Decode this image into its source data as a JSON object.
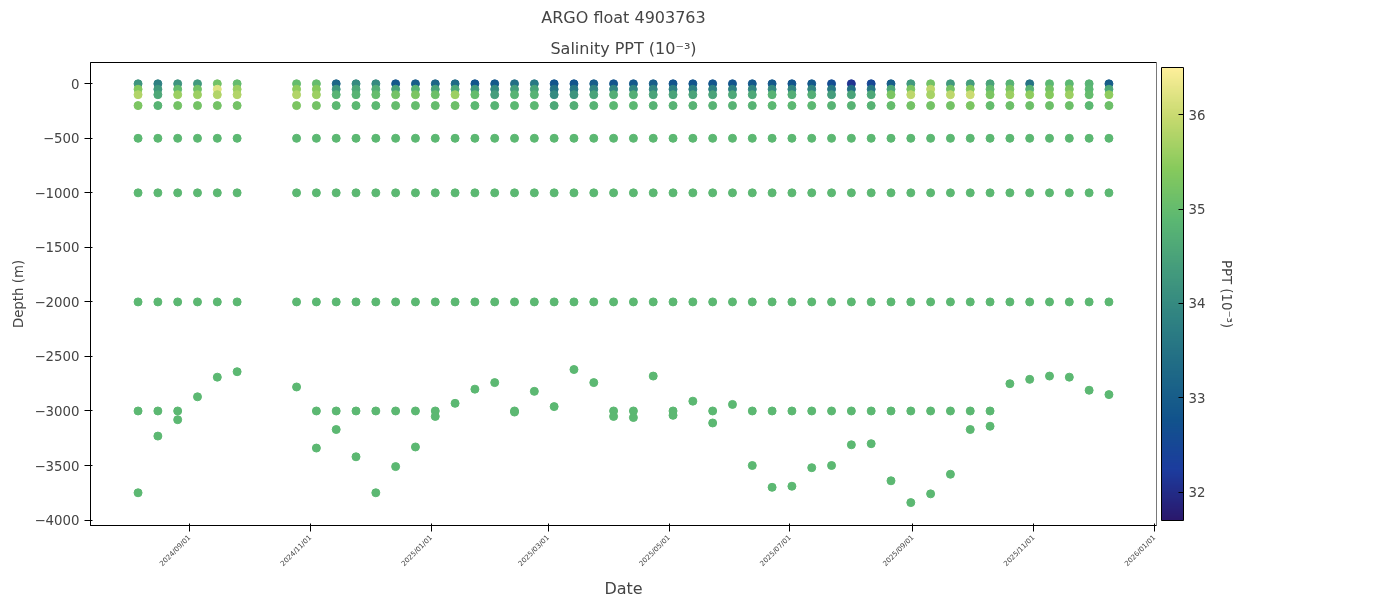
{
  "chart_data": {
    "type": "scatter",
    "title": "ARGO float 4903763",
    "subtitle": "Salinity PPT (10⁻³)",
    "xlabel": "Date",
    "ylabel": "Depth (m)",
    "clabel": "PPT (10⁻³)",
    "marker": "circle",
    "grid": false,
    "xlim": [
      "2024-07-13",
      "2026-01-02"
    ],
    "xticks": [
      {
        "value": "2024-09-01",
        "label": "2024/09/01"
      },
      {
        "value": "2024-11-01",
        "label": "2024/11/01"
      },
      {
        "value": "2025-01-01",
        "label": "2025/01/01"
      },
      {
        "value": "2025-03-01",
        "label": "2025/03/01"
      },
      {
        "value": "2025-05-01",
        "label": "2025/05/01"
      },
      {
        "value": "2025-07-01",
        "label": "2025/07/01"
      },
      {
        "value": "2025-09-01",
        "label": "2025/09/01"
      },
      {
        "value": "2025-11-01",
        "label": "2025/11/01"
      },
      {
        "value": "2026-01-01",
        "label": "2026/01/01"
      }
    ],
    "ylim": [
      -4050,
      195
    ],
    "yticks": [
      -4000,
      -3500,
      -3000,
      -2500,
      -2000,
      -1500,
      -1000,
      -500,
      0
    ],
    "clim": [
      31.7,
      36.5
    ],
    "cticks": [
      32,
      33,
      34,
      35,
      36
    ],
    "x": [
      "2024-08-06",
      "2024-08-06",
      "2024-08-06",
      "2024-08-06",
      "2024-08-06",
      "2024-08-06",
      "2024-08-06",
      "2024-08-06",
      "2024-08-06",
      "2024-08-16",
      "2024-08-16",
      "2024-08-16",
      "2024-08-16",
      "2024-08-16",
      "2024-08-16",
      "2024-08-16",
      "2024-08-16",
      "2024-08-16",
      "2024-08-26",
      "2024-08-26",
      "2024-08-26",
      "2024-08-26",
      "2024-08-26",
      "2024-08-26",
      "2024-08-26",
      "2024-08-26",
      "2024-08-26",
      "2024-09-05",
      "2024-09-05",
      "2024-09-05",
      "2024-09-05",
      "2024-09-05",
      "2024-09-05",
      "2024-09-05",
      "2024-09-05",
      "2024-09-15",
      "2024-09-15",
      "2024-09-15",
      "2024-09-15",
      "2024-09-15",
      "2024-09-15",
      "2024-09-15",
      "2024-09-15",
      "2024-09-25",
      "2024-09-25",
      "2024-09-25",
      "2024-09-25",
      "2024-09-25",
      "2024-09-25",
      "2024-09-25",
      "2024-09-25",
      "2024-10-25",
      "2024-10-25",
      "2024-10-25",
      "2024-10-25",
      "2024-10-25",
      "2024-10-25",
      "2024-10-25",
      "2024-10-25",
      "2024-11-04",
      "2024-11-04",
      "2024-11-04",
      "2024-11-04",
      "2024-11-04",
      "2024-11-04",
      "2024-11-04",
      "2024-11-04",
      "2024-11-04",
      "2024-11-14",
      "2024-11-14",
      "2024-11-14",
      "2024-11-14",
      "2024-11-14",
      "2024-11-14",
      "2024-11-14",
      "2024-11-14",
      "2024-11-14",
      "2024-11-24",
      "2024-11-24",
      "2024-11-24",
      "2024-11-24",
      "2024-11-24",
      "2024-11-24",
      "2024-11-24",
      "2024-11-24",
      "2024-11-24",
      "2024-12-04",
      "2024-12-04",
      "2024-12-04",
      "2024-12-04",
      "2024-12-04",
      "2024-12-04",
      "2024-12-04",
      "2024-12-04",
      "2024-12-04",
      "2024-12-14",
      "2024-12-14",
      "2024-12-14",
      "2024-12-14",
      "2024-12-14",
      "2024-12-14",
      "2024-12-14",
      "2024-12-14",
      "2024-12-14",
      "2024-12-24",
      "2024-12-24",
      "2024-12-24",
      "2024-12-24",
      "2024-12-24",
      "2024-12-24",
      "2024-12-24",
      "2024-12-24",
      "2024-12-24",
      "2025-01-03",
      "2025-01-03",
      "2025-01-03",
      "2025-01-03",
      "2025-01-03",
      "2025-01-03",
      "2025-01-03",
      "2025-01-03",
      "2025-01-03",
      "2025-01-13",
      "2025-01-13",
      "2025-01-13",
      "2025-01-13",
      "2025-01-13",
      "2025-01-13",
      "2025-01-13",
      "2025-01-13",
      "2025-01-23",
      "2025-01-23",
      "2025-01-23",
      "2025-01-23",
      "2025-01-23",
      "2025-01-23",
      "2025-01-23",
      "2025-01-23",
      "2025-02-02",
      "2025-02-02",
      "2025-02-02",
      "2025-02-02",
      "2025-02-02",
      "2025-02-02",
      "2025-02-02",
      "2025-02-02",
      "2025-02-12",
      "2025-02-12",
      "2025-02-12",
      "2025-02-12",
      "2025-02-12",
      "2025-02-12",
      "2025-02-12",
      "2025-02-12",
      "2025-02-12",
      "2025-02-22",
      "2025-02-22",
      "2025-02-22",
      "2025-02-22",
      "2025-02-22",
      "2025-02-22",
      "2025-02-22",
      "2025-02-22",
      "2025-03-04",
      "2025-03-04",
      "2025-03-04",
      "2025-03-04",
      "2025-03-04",
      "2025-03-04",
      "2025-03-04",
      "2025-03-04",
      "2025-03-14",
      "2025-03-14",
      "2025-03-14",
      "2025-03-14",
      "2025-03-14",
      "2025-03-14",
      "2025-03-14",
      "2025-03-14",
      "2025-03-24",
      "2025-03-24",
      "2025-03-24",
      "2025-03-24",
      "2025-03-24",
      "2025-03-24",
      "2025-03-24",
      "2025-03-24",
      "2025-04-03",
      "2025-04-03",
      "2025-04-03",
      "2025-04-03",
      "2025-04-03",
      "2025-04-03",
      "2025-04-03",
      "2025-04-03",
      "2025-04-03",
      "2025-04-13",
      "2025-04-13",
      "2025-04-13",
      "2025-04-13",
      "2025-04-13",
      "2025-04-13",
      "2025-04-13",
      "2025-04-13",
      "2025-04-13",
      "2025-04-23",
      "2025-04-23",
      "2025-04-23",
      "2025-04-23",
      "2025-04-23",
      "2025-04-23",
      "2025-04-23",
      "2025-04-23",
      "2025-05-03",
      "2025-05-03",
      "2025-05-03",
      "2025-05-03",
      "2025-05-03",
      "2025-05-03",
      "2025-05-03",
      "2025-05-03",
      "2025-05-03",
      "2025-05-13",
      "2025-05-13",
      "2025-05-13",
      "2025-05-13",
      "2025-05-13",
      "2025-05-13",
      "2025-05-13",
      "2025-05-13",
      "2025-05-23",
      "2025-05-23",
      "2025-05-23",
      "2025-05-23",
      "2025-05-23",
      "2025-05-23",
      "2025-05-23",
      "2025-05-23",
      "2025-05-23",
      "2025-06-02",
      "2025-06-02",
      "2025-06-02",
      "2025-06-02",
      "2025-06-02",
      "2025-06-02",
      "2025-06-02",
      "2025-06-02",
      "2025-06-12",
      "2025-06-12",
      "2025-06-12",
      "2025-06-12",
      "2025-06-12",
      "2025-06-12",
      "2025-06-12",
      "2025-06-12",
      "2025-06-12",
      "2025-06-22",
      "2025-06-22",
      "2025-06-22",
      "2025-06-22",
      "2025-06-22",
      "2025-06-22",
      "2025-06-22",
      "2025-06-22",
      "2025-06-22",
      "2025-07-02",
      "2025-07-02",
      "2025-07-02",
      "2025-07-02",
      "2025-07-02",
      "2025-07-02",
      "2025-07-02",
      "2025-07-02",
      "2025-07-02",
      "2025-07-12",
      "2025-07-12",
      "2025-07-12",
      "2025-07-12",
      "2025-07-12",
      "2025-07-12",
      "2025-07-12",
      "2025-07-12",
      "2025-07-12",
      "2025-07-22",
      "2025-07-22",
      "2025-07-22",
      "2025-07-22",
      "2025-07-22",
      "2025-07-22",
      "2025-07-22",
      "2025-07-22",
      "2025-07-22",
      "2025-08-01",
      "2025-08-01",
      "2025-08-01",
      "2025-08-01",
      "2025-08-01",
      "2025-08-01",
      "2025-08-01",
      "2025-08-01",
      "2025-08-01",
      "2025-08-11",
      "2025-08-11",
      "2025-08-11",
      "2025-08-11",
      "2025-08-11",
      "2025-08-11",
      "2025-08-11",
      "2025-08-11",
      "2025-08-11",
      "2025-08-21",
      "2025-08-21",
      "2025-08-21",
      "2025-08-21",
      "2025-08-21",
      "2025-08-21",
      "2025-08-21",
      "2025-08-21",
      "2025-08-21",
      "2025-08-31",
      "2025-08-31",
      "2025-08-31",
      "2025-08-31",
      "2025-08-31",
      "2025-08-31",
      "2025-08-31",
      "2025-08-31",
      "2025-08-31",
      "2025-09-10",
      "2025-09-10",
      "2025-09-10",
      "2025-09-10",
      "2025-09-10",
      "2025-09-10",
      "2025-09-10",
      "2025-09-10",
      "2025-09-10",
      "2025-09-20",
      "2025-09-20",
      "2025-09-20",
      "2025-09-20",
      "2025-09-20",
      "2025-09-20",
      "2025-09-20",
      "2025-09-20",
      "2025-09-20",
      "2025-09-30",
      "2025-09-30",
      "2025-09-30",
      "2025-09-30",
      "2025-09-30",
      "2025-09-30",
      "2025-09-30",
      "2025-09-30",
      "2025-09-30",
      "2025-10-10",
      "2025-10-10",
      "2025-10-10",
      "2025-10-10",
      "2025-10-10",
      "2025-10-10",
      "2025-10-10",
      "2025-10-10",
      "2025-10-10",
      "2025-10-20",
      "2025-10-20",
      "2025-10-20",
      "2025-10-20",
      "2025-10-20",
      "2025-10-20",
      "2025-10-20",
      "2025-10-20",
      "2025-10-30",
      "2025-10-30",
      "2025-10-30",
      "2025-10-30",
      "2025-10-30",
      "2025-10-30",
      "2025-10-30",
      "2025-10-30",
      "2025-11-09",
      "2025-11-09",
      "2025-11-09",
      "2025-11-09",
      "2025-11-09",
      "2025-11-09",
      "2025-11-09",
      "2025-11-09",
      "2025-11-19",
      "2025-11-19",
      "2025-11-19",
      "2025-11-19",
      "2025-11-19",
      "2025-11-19",
      "2025-11-19",
      "2025-11-19",
      "2025-11-29",
      "2025-11-29",
      "2025-11-29",
      "2025-11-29",
      "2025-11-29",
      "2025-11-29",
      "2025-11-29",
      "2025-11-29",
      "2025-12-09",
      "2025-12-09",
      "2025-12-09",
      "2025-12-09",
      "2025-12-09",
      "2025-12-09",
      "2025-12-09",
      "2025-12-09"
    ],
    "values": [
      0,
      -50,
      -100,
      -200,
      -500,
      -1000,
      -2000,
      -3000,
      -3750,
      0,
      -50,
      -100,
      -200,
      -500,
      -1000,
      -2000,
      -3000,
      -3230,
      0,
      -50,
      -100,
      -200,
      -500,
      -1000,
      -2000,
      -3000,
      -3080,
      0,
      -50,
      -100,
      -200,
      -500,
      -1000,
      -2000,
      -2870,
      0,
      -50,
      -100,
      -200,
      -500,
      -1000,
      -2000,
      -2690,
      0,
      -50,
      -100,
      -200,
      -500,
      -1000,
      -2000,
      -2640,
      0,
      -50,
      -100,
      -200,
      -500,
      -1000,
      -2000,
      -2780,
      0,
      -50,
      -100,
      -200,
      -500,
      -1000,
      -2000,
      -3000,
      -3340,
      0,
      -50,
      -100,
      -200,
      -500,
      -1000,
      -2000,
      -3000,
      -3170,
      0,
      -50,
      -100,
      -200,
      -500,
      -1000,
      -2000,
      -3000,
      -3420,
      0,
      -50,
      -100,
      -200,
      -500,
      -1000,
      -2000,
      -3000,
      -3750,
      0,
      -50,
      -100,
      -200,
      -500,
      -1000,
      -2000,
      -3000,
      -3510,
      0,
      -50,
      -100,
      -200,
      -500,
      -1000,
      -2000,
      -3000,
      -3330,
      0,
      -50,
      -100,
      -200,
      -500,
      -1000,
      -2000,
      -3000,
      -3050,
      0,
      -50,
      -100,
      -200,
      -500,
      -1000,
      -2000,
      -2930,
      0,
      -50,
      -100,
      -200,
      -500,
      -1000,
      -2000,
      -2800,
      0,
      -50,
      -100,
      -200,
      -500,
      -1000,
      -2000,
      -2740,
      0,
      -50,
      -100,
      -200,
      -500,
      -1000,
      -2000,
      -3000,
      -3010,
      0,
      -50,
      -100,
      -200,
      -500,
      -1000,
      -2000,
      -2820,
      0,
      -50,
      -100,
      -200,
      -500,
      -1000,
      -2000,
      -2960,
      0,
      -50,
      -100,
      -200,
      -500,
      -1000,
      -2000,
      -2620,
      0,
      -50,
      -100,
      -200,
      -500,
      -1000,
      -2000,
      -2740,
      0,
      -50,
      -100,
      -200,
      -500,
      -1000,
      -2000,
      -3000,
      -3050,
      0,
      -50,
      -100,
      -200,
      -500,
      -1000,
      -2000,
      -3000,
      -3060,
      0,
      -50,
      -100,
      -200,
      -500,
      -1000,
      -2000,
      -2680,
      0,
      -50,
      -100,
      -200,
      -500,
      -1000,
      -2000,
      -3000,
      -3040,
      0,
      -50,
      -100,
      -200,
      -500,
      -1000,
      -2000,
      -2910,
      0,
      -50,
      -100,
      -200,
      -500,
      -1000,
      -2000,
      -3000,
      -3110,
      0,
      -50,
      -100,
      -200,
      -500,
      -1000,
      -2000,
      -2940,
      0,
      -50,
      -100,
      -200,
      -500,
      -1000,
      -2000,
      -3000,
      -3500,
      0,
      -50,
      -100,
      -200,
      -500,
      -1000,
      -2000,
      -3000,
      -3700,
      0,
      -50,
      -100,
      -200,
      -500,
      -1000,
      -2000,
      -3000,
      -3690,
      0,
      -50,
      -100,
      -200,
      -500,
      -1000,
      -2000,
      -3000,
      -3520,
      0,
      -50,
      -100,
      -200,
      -500,
      -1000,
      -2000,
      -3000,
      -3500,
      0,
      -50,
      -100,
      -200,
      -500,
      -1000,
      -2000,
      -3000,
      -3310,
      0,
      -50,
      -100,
      -200,
      -500,
      -1000,
      -2000,
      -3000,
      -3300,
      0,
      -50,
      -100,
      -200,
      -500,
      -1000,
      -2000,
      -3000,
      -3640,
      0,
      -50,
      -100,
      -200,
      -500,
      -1000,
      -2000,
      -3000,
      -3840,
      0,
      -50,
      -100,
      -200,
      -500,
      -1000,
      -2000,
      -3000,
      -3760,
      0,
      -50,
      -100,
      -200,
      -500,
      -1000,
      -2000,
      -3000,
      -3580,
      0,
      -50,
      -100,
      -200,
      -500,
      -1000,
      -2000,
      -3000,
      -3170,
      0,
      -50,
      -100,
      -200,
      -500,
      -1000,
      -2000,
      -3000,
      -3140,
      0,
      -50,
      -100,
      -200,
      -500,
      -1000,
      -2000,
      -2750,
      0,
      -50,
      -100,
      -200,
      -500,
      -1000,
      -2000,
      -2710,
      0,
      -50,
      -100,
      -200,
      -500,
      -1000,
      -2000,
      -2680,
      0,
      -50,
      -100,
      -200,
      -500,
      -1000,
      -2000,
      -2690,
      0,
      -50,
      -100,
      -200,
      -500,
      -1000,
      -2000,
      -2810,
      0,
      -50,
      -100,
      -200,
      -500,
      -1000,
      -2000,
      -2850
    ],
    "cvalues": [
      34.2,
      35.4,
      35.8,
      35.3,
      34.9,
      34.9,
      34.9,
      34.9,
      34.9,
      33.8,
      34.3,
      34.6,
      34.8,
      34.9,
      34.9,
      34.9,
      34.9,
      34.9,
      34.2,
      35.0,
      35.6,
      35.2,
      34.9,
      34.9,
      34.9,
      34.9,
      34.9,
      34.3,
      35.2,
      35.6,
      35.2,
      34.9,
      34.9,
      34.9,
      34.9,
      35.2,
      36.2,
      35.8,
      35.2,
      34.9,
      34.9,
      34.9,
      34.9,
      35.0,
      35.6,
      35.8,
      35.2,
      34.9,
      34.9,
      34.9,
      34.9,
      35.0,
      35.5,
      35.8,
      35.3,
      34.9,
      34.9,
      34.9,
      34.9,
      35.0,
      35.4,
      35.6,
      35.2,
      34.9,
      34.9,
      34.9,
      34.9,
      34.9,
      33.2,
      34.3,
      34.8,
      34.9,
      34.9,
      34.9,
      34.9,
      34.9,
      34.9,
      34.0,
      34.6,
      34.8,
      34.9,
      34.9,
      34.9,
      34.9,
      34.9,
      34.9,
      34.0,
      34.7,
      35.0,
      34.9,
      34.9,
      34.9,
      34.9,
      34.9,
      34.9,
      32.9,
      34.5,
      35.2,
      35.0,
      34.9,
      34.9,
      34.9,
      34.9,
      34.9,
      33.0,
      34.8,
      35.3,
      35.0,
      34.9,
      34.9,
      34.9,
      34.9,
      34.9,
      33.2,
      34.5,
      35.1,
      35.0,
      34.9,
      34.9,
      34.9,
      34.9,
      34.9,
      33.3,
      34.6,
      35.6,
      35.1,
      34.9,
      34.9,
      34.9,
      34.9,
      32.8,
      34.3,
      35.0,
      34.9,
      34.9,
      34.9,
      34.9,
      34.9,
      32.9,
      34.0,
      34.4,
      34.8,
      34.9,
      34.9,
      34.9,
      34.9,
      33.4,
      34.4,
      34.8,
      34.9,
      34.9,
      34.9,
      34.9,
      34.9,
      34.9,
      33.6,
      34.5,
      34.8,
      34.9,
      34.9,
      34.9,
      34.9,
      34.9,
      32.8,
      33.5,
      34.0,
      34.6,
      34.9,
      34.9,
      34.9,
      34.9,
      32.8,
      33.6,
      34.2,
      34.7,
      34.9,
      34.9,
      34.9,
      34.9,
      33.0,
      33.9,
      34.5,
      34.8,
      34.9,
      34.9,
      34.9,
      34.9,
      32.8,
      33.9,
      34.7,
      34.9,
      34.9,
      34.9,
      34.9,
      34.9,
      34.9,
      32.9,
      33.9,
      34.7,
      34.9,
      34.9,
      34.9,
      34.9,
      34.9,
      34.9,
      33.0,
      33.9,
      34.5,
      34.8,
      34.9,
      34.9,
      34.9,
      34.9,
      32.8,
      33.8,
      34.5,
      34.8,
      34.9,
      34.9,
      34.9,
      34.9,
      34.9,
      32.8,
      33.8,
      34.5,
      34.8,
      34.9,
      34.9,
      34.9,
      34.9,
      32.8,
      33.8,
      34.5,
      34.8,
      34.9,
      34.9,
      34.9,
      34.9,
      34.9,
      32.8,
      33.8,
      34.6,
      34.8,
      34.9,
      34.9,
      34.9,
      34.9,
      32.9,
      33.9,
      34.6,
      34.8,
      34.9,
      34.9,
      34.9,
      34.9,
      34.9,
      32.9,
      34.0,
      34.8,
      34.9,
      34.9,
      34.9,
      34.9,
      34.9,
      34.9,
      32.8,
      33.9,
      34.7,
      34.9,
      34.9,
      34.9,
      34.9,
      34.9,
      34.9,
      32.9,
      33.9,
      34.7,
      34.9,
      34.9,
      34.9,
      34.9,
      34.9,
      34.9,
      32.6,
      33.6,
      34.4,
      34.8,
      34.9,
      34.9,
      34.9,
      34.9,
      34.9,
      32.1,
      33.4,
      34.5,
      34.8,
      34.9,
      34.9,
      34.9,
      34.9,
      34.9,
      32.5,
      33.6,
      34.6,
      34.8,
      34.9,
      34.9,
      34.9,
      34.9,
      34.9,
      33.0,
      34.6,
      35.3,
      35.0,
      34.9,
      34.9,
      34.9,
      34.9,
      34.9,
      34.3,
      35.3,
      35.9,
      35.2,
      34.9,
      34.9,
      34.9,
      34.9,
      34.9,
      35.2,
      35.9,
      35.7,
      35.2,
      34.9,
      34.9,
      34.9,
      34.9,
      34.9,
      34.3,
      35.2,
      35.9,
      35.2,
      34.9,
      34.9,
      34.9,
      34.9,
      34.9,
      34.4,
      35.4,
      36.0,
      35.3,
      34.9,
      34.9,
      34.9,
      34.9,
      34.9,
      34.5,
      35.0,
      35.3,
      35.0,
      34.9,
      34.9,
      34.9,
      34.9,
      34.9,
      34.8,
      35.3,
      35.6,
      35.1,
      34.9,
      34.9,
      34.9,
      34.9,
      33.5,
      34.8,
      35.5,
      35.1,
      34.9,
      34.9,
      34.9,
      34.9,
      34.9,
      35.2,
      35.4,
      35.1,
      34.9,
      34.9,
      34.9,
      34.9,
      34.9,
      35.3,
      35.6,
      35.1,
      34.9,
      34.9,
      34.9,
      34.9,
      34.8,
      34.9,
      35.0,
      34.9,
      34.9,
      34.9,
      34.9,
      34.9,
      33.0,
      34.6,
      35.5,
      35.1,
      34.9,
      34.9,
      34.9,
      34.9
    ]
  }
}
